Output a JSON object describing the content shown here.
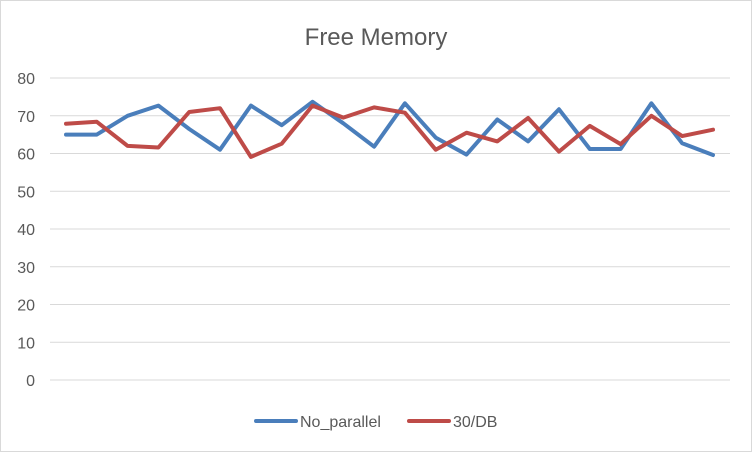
{
  "chart_data": {
    "type": "line",
    "title": "Free Memory",
    "xlabel": "",
    "ylabel": "",
    "ylim": [
      0,
      80
    ],
    "yticks": [
      "0",
      "10",
      "20",
      "30",
      "40",
      "50",
      "60",
      "70",
      "80"
    ],
    "grid": true,
    "legend_position": "bottom",
    "series": [
      {
        "name": "No_parallel",
        "color": "#4a7ebb",
        "values": [
          65,
          65,
          70,
          72.7,
          66.5,
          61,
          72.7,
          67.5,
          73.7,
          68,
          61.8,
          73.3,
          64.2,
          59.7,
          69,
          63.2,
          71.7,
          61.2,
          61.2,
          73.3,
          62.7,
          59.6
        ]
      },
      {
        "name": "30/DB",
        "color": "#be4b48",
        "values": [
          67.9,
          68.4,
          62,
          61.6,
          71,
          72,
          59.1,
          62.6,
          72.7,
          69.5,
          72.2,
          70.8,
          61,
          65.5,
          63.2,
          69.4,
          60.5,
          67.3,
          62.5,
          70,
          64.6,
          66.3
        ]
      }
    ]
  }
}
